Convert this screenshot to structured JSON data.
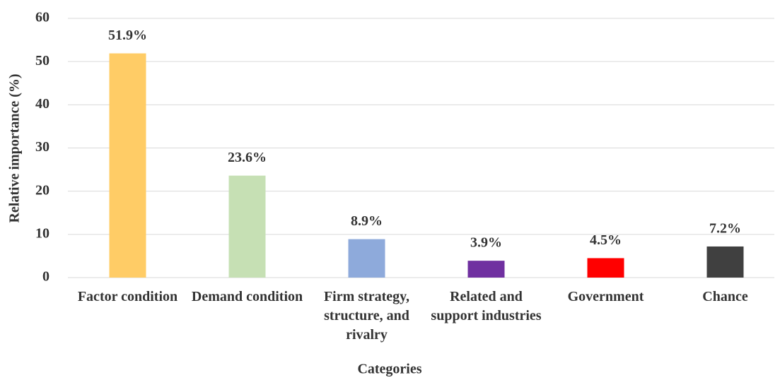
{
  "chart_data": {
    "type": "bar",
    "xlabel": "Categories",
    "ylabel": "Relative importance (%)",
    "categories": [
      "Factor condition",
      "Demand condition",
      "Firm strategy, structure, and rivalry",
      "Related and support industries",
      "Government",
      "Chance"
    ],
    "values": [
      51.9,
      23.6,
      8.9,
      3.9,
      4.5,
      7.2
    ],
    "value_labels": [
      "51.9%",
      "23.6%",
      "8.9%",
      "3.9%",
      "4.5%",
      "7.2%"
    ],
    "colors": [
      "#ffcc66",
      "#c6e0b4",
      "#8eaadb",
      "#7030a0",
      "#ff0000",
      "#404040"
    ],
    "ylim": [
      0,
      60
    ],
    "yticks": [
      0,
      10,
      20,
      30,
      40,
      50,
      60
    ],
    "grid": true
  }
}
